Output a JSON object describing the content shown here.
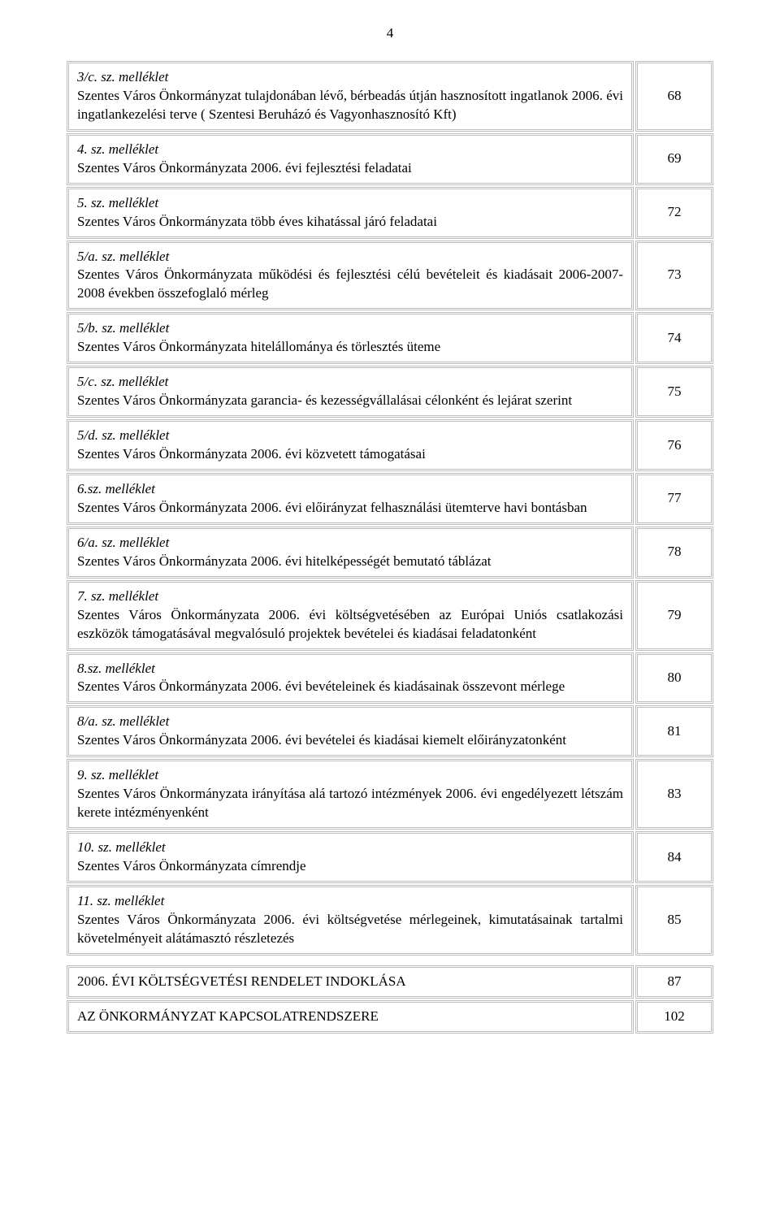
{
  "pageNumber": "4",
  "rows": [
    {
      "title": "3/c. sz. melléklet",
      "body": "Szentes Város Önkormányzat tulajdonában lévő, bérbeadás útján hasznosított ingatlanok 2006. évi ingatlankezelési terve ( Szentesi Beruházó és Vagyonhasznosító Kft)",
      "page": "68"
    },
    {
      "title": "4. sz. melléklet",
      "body": "Szentes Város Önkormányzata 2006. évi fejlesztési feladatai",
      "page": "69"
    },
    {
      "title": "5. sz. melléklet",
      "body": "Szentes Város Önkormányzata több éves kihatással járó feladatai",
      "page": "72"
    },
    {
      "title": "5/a. sz. melléklet",
      "body": "Szentes Város Önkormányzata működési és fejlesztési célú bevételeit és kiadásait 2006-2007-2008 években összefoglaló mérleg",
      "page": "73"
    },
    {
      "title": "5/b. sz. melléklet",
      "body": "Szentes Város Önkormányzata hitelállománya és törlesztés üteme",
      "page": "74"
    },
    {
      "title": "5/c. sz. melléklet",
      "body": "Szentes Város Önkormányzata garancia- és kezességvállalásai célonként és lejárat szerint",
      "page": "75"
    },
    {
      "title": "5/d. sz. melléklet",
      "body": "Szentes Város Önkormányzata 2006. évi közvetett támogatásai",
      "page": "76"
    },
    {
      "title": "6.sz. melléklet",
      "body": "Szentes Város Önkormányzata 2006. évi előirányzat felhasználási ütemterve havi bontásban",
      "page": "77"
    },
    {
      "title": "6/a. sz. melléklet",
      "body": "Szentes Város Önkormányzata 2006. évi hitelképességét bemutató táblázat",
      "page": "78"
    },
    {
      "title": "7. sz. melléklet",
      "body": " Szentes Város Önkormányzata 2006. évi költségvetésében az Európai Uniós csatlakozási eszközök támogatásával megvalósuló projektek bevételei és kiadásai feladatonként",
      "page": "79"
    },
    {
      "title": "8.sz. melléklet",
      "body": "Szentes Város Önkormányzata 2006. évi bevételeinek és kiadásainak összevont mérlege",
      "page": "80"
    },
    {
      "title": "8/a. sz. melléklet",
      "body": "Szentes Város Önkormányzata 2006. évi bevételei és kiadásai kiemelt előirányzatonként",
      "page": "81"
    },
    {
      "title": "9. sz. melléklet",
      "body": "Szentes Város Önkormányzata irányítása alá tartozó intézmények 2006. évi engedélyezett létszám kerete intézményenként",
      "page": "83"
    },
    {
      "title": "10. sz. melléklet",
      "body": "Szentes Város Önkormányzata címrendje",
      "page": "84"
    },
    {
      "title": "11. sz. melléklet",
      "body": "Szentes Város Önkormányzata 2006. évi költségvetése mérlegeinek, kimutatásainak tartalmi követelményeit alátámasztó részletezés",
      "page": "85"
    }
  ],
  "bottomRows": [
    {
      "text": "2006. ÉVI KÖLTSÉGVETÉSI RENDELET INDOKLÁSA",
      "page": "87"
    },
    {
      "text": "AZ ÖNKORMÁNYZAT KAPCSOLATRENDSZERE",
      "page": "102"
    }
  ]
}
